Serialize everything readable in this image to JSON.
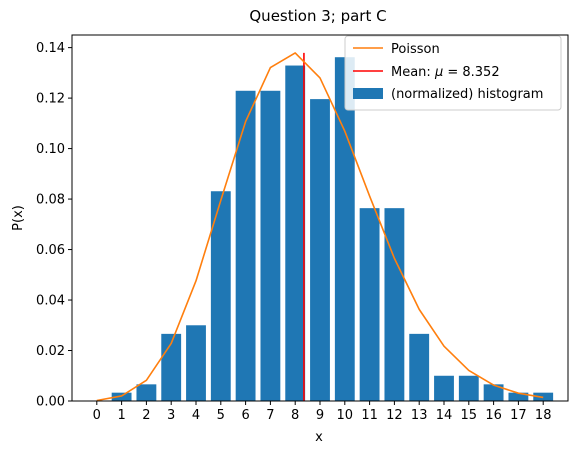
{
  "chart_data": {
    "type": "bar",
    "title": "Question 3; part C",
    "xlabel": "x",
    "ylabel": "P(x)",
    "xlim": [
      -1,
      19
    ],
    "ylim": [
      0,
      0.145
    ],
    "x": [
      0,
      1,
      2,
      3,
      4,
      5,
      6,
      7,
      8,
      9,
      10,
      11,
      12,
      13,
      14,
      15,
      16,
      17,
      18
    ],
    "x_tick_labels": [
      "0",
      "1",
      "2",
      "3",
      "4",
      "5",
      "6",
      "7",
      "8",
      "9",
      "10",
      "11",
      "12",
      "13",
      "14",
      "15",
      "16",
      "17",
      "18"
    ],
    "y_ticks": [
      0,
      0.02,
      0.04,
      0.06,
      0.08,
      0.1,
      0.12,
      0.14
    ],
    "y_tick_labels": [
      "0.00",
      "0.02",
      "0.04",
      "0.06",
      "0.08",
      "0.10",
      "0.12",
      "0.14"
    ],
    "grid": false,
    "legend_position": "top-right",
    "series": [
      {
        "name": "Poisson",
        "type": "line",
        "color": "#ff7f0e",
        "x": [
          0,
          1,
          2,
          3,
          4,
          5,
          6,
          7,
          8,
          9,
          10,
          11,
          12,
          13,
          14,
          15,
          16,
          17,
          18
        ],
        "values": [
          0.0002,
          0.002,
          0.0082,
          0.0228,
          0.0476,
          0.0795,
          0.1107,
          0.1321,
          0.1379,
          0.128,
          0.1069,
          0.0812,
          0.0565,
          0.0363,
          0.0217,
          0.0121,
          0.0063,
          0.0031,
          0.0014
        ]
      },
      {
        "name": "(normalized) histogram",
        "type": "bar",
        "color": "#1f77b4",
        "x": [
          1,
          2,
          3,
          4,
          5,
          6,
          7,
          8,
          9,
          10,
          11,
          12,
          13,
          14,
          15,
          16,
          17,
          18
        ],
        "values": [
          0.0033,
          0.0066,
          0.0266,
          0.03,
          0.0831,
          0.1229,
          0.1229,
          0.1329,
          0.1196,
          0.1362,
          0.0764,
          0.0764,
          0.0266,
          0.01,
          0.01,
          0.0066,
          0.0033,
          0.0033
        ]
      }
    ],
    "mean_line": {
      "label": "Mean: μ = 8.352",
      "label_prefix": "Mean: ",
      "label_mu": "μ",
      "label_suffix": " = 8.352",
      "x": 8.352,
      "color": "#ff0000"
    }
  }
}
